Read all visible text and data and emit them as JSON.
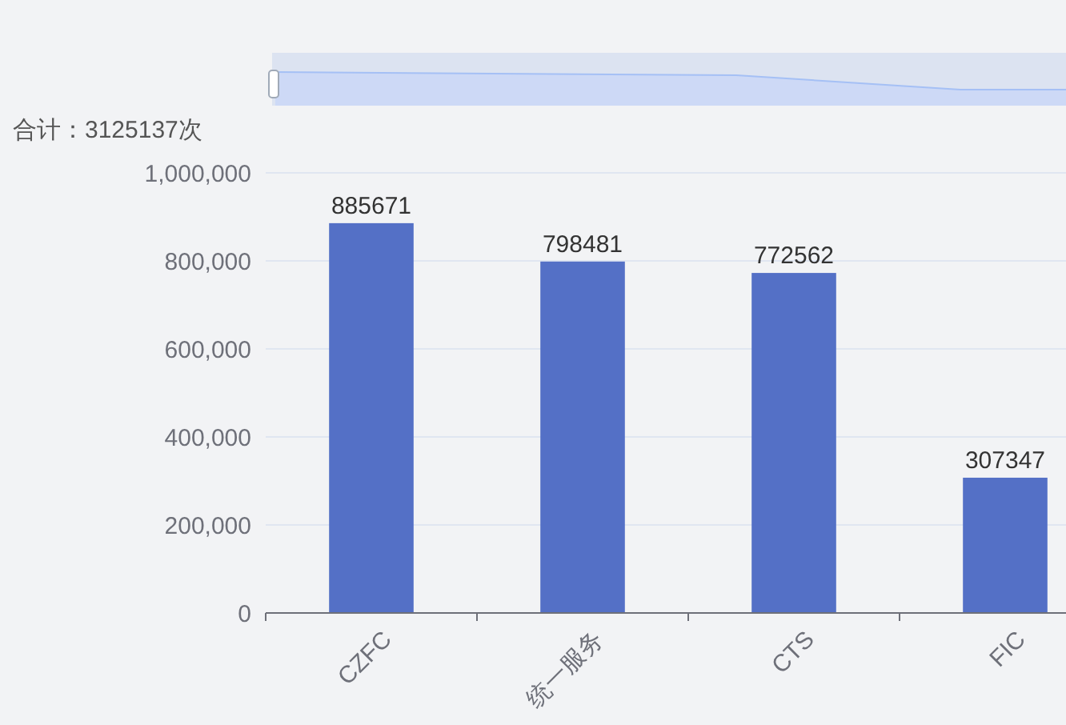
{
  "chart_data": {
    "type": "bar",
    "title": "合计：3125137次",
    "categories": [
      "CZFC",
      "统一服务",
      "CTS",
      "FIC"
    ],
    "values": [
      885671,
      798481,
      772562,
      307347
    ],
    "color": "#5470c6",
    "ylim": [
      0,
      1000000
    ],
    "yticks": [
      0,
      {
        "value": 200000,
        "label": "200,000"
      },
      {
        "value": 400000,
        "label": "400,000"
      },
      {
        "value": 600000,
        "label": "600,000"
      },
      {
        "value": 800000,
        "label": "800,000"
      },
      {
        "value": 1000000,
        "label": "1,000,000"
      }
    ],
    "grid": "y",
    "data_labels": true
  }
}
